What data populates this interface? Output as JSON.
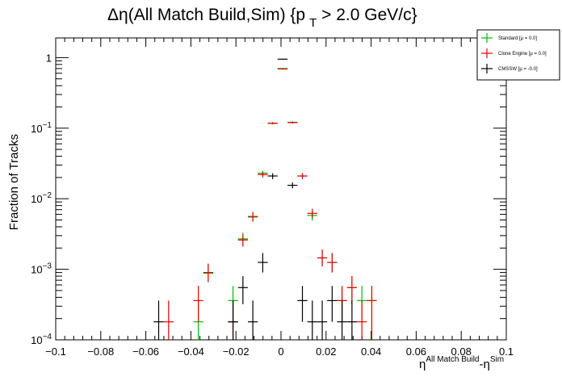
{
  "chart_data": {
    "type": "scatter",
    "title_main": "Δη(All Match Build,Sim) {p",
    "title_sub": "T",
    "title_tail": " > 2.0 GeV/c}",
    "xlabel_main": "η",
    "xlabel_sup1": "All Match Build",
    "xlabel_mid": "-η",
    "xlabel_sup2": "Sim",
    "ylabel": "Fraction of Tracks",
    "xlim": [
      -0.1,
      0.1
    ],
    "ylim": [
      0.0001,
      1.9
    ],
    "yscale": "log",
    "bin_width": 0.0044,
    "x_ticks": [
      "−0.1",
      "−0.08",
      "−0.06",
      "−0.04",
      "−0.02",
      "0",
      "0.02",
      "0.04",
      "0.06",
      "0.08",
      "0.1"
    ],
    "x_tick_values": [
      -0.1,
      -0.08,
      -0.06,
      -0.04,
      -0.02,
      0,
      0.02,
      0.04,
      0.06,
      0.08,
      0.1
    ],
    "y_ticks": [
      {
        "value": 1,
        "base": "1",
        "exp": ""
      },
      {
        "value": 0.1,
        "base": "10",
        "exp": "−1"
      },
      {
        "value": 0.01,
        "base": "10",
        "exp": "−2"
      },
      {
        "value": 0.001,
        "base": "10",
        "exp": "−3"
      },
      {
        "value": 0.0001,
        "base": "10",
        "exp": "−4"
      }
    ],
    "legend_position": "top-right",
    "series": [
      {
        "name": "Standard",
        "stat": "[μ = 0.0]",
        "color": "#00bb00",
        "points": [
          {
            "x": -0.0367,
            "y": 0.00018,
            "ylo": 0.0001,
            "yhi": 0.00036
          },
          {
            "x": -0.0323,
            "y": 0.00088,
            "ylo": 0.00065,
            "yhi": 0.0012
          },
          {
            "x": -0.0213,
            "y": 0.00036,
            "ylo": 0.00018,
            "yhi": 0.00058
          },
          {
            "x": -0.0169,
            "y": 0.0027,
            "ylo": 0.0022,
            "yhi": 0.0033
          },
          {
            "x": -0.0125,
            "y": 0.0055,
            "ylo": 0.0047,
            "yhi": 0.0064
          },
          {
            "x": -0.0081,
            "y": 0.023,
            "ylo": 0.021,
            "yhi": 0.025
          },
          {
            "x": -0.0037,
            "y": 0.118,
            "ylo": 0.114,
            "yhi": 0.122
          },
          {
            "x": 0.0007,
            "y": 0.7,
            "ylo": 0.69,
            "yhi": 0.71
          },
          {
            "x": 0.0051,
            "y": 0.121,
            "ylo": 0.117,
            "yhi": 0.125
          },
          {
            "x": 0.0095,
            "y": 0.021,
            "ylo": 0.019,
            "yhi": 0.023
          },
          {
            "x": 0.0139,
            "y": 0.0058,
            "ylo": 0.0049,
            "yhi": 0.0067
          },
          {
            "x": 0.0183,
            "y": 0.00145,
            "ylo": 0.0011,
            "yhi": 0.0019
          },
          {
            "x": 0.0227,
            "y": 0.00125,
            "ylo": 0.0009,
            "yhi": 0.0017
          },
          {
            "x": 0.0271,
            "y": 0.00036,
            "ylo": 0.00018,
            "yhi": 0.00058
          },
          {
            "x": 0.0315,
            "y": 0.00055,
            "ylo": 0.00032,
            "yhi": 0.0008
          },
          {
            "x": 0.0359,
            "y": 0.00036,
            "ylo": 0.00018,
            "yhi": 0.00058
          },
          {
            "x": 0.0403,
            "y": 0.00036,
            "ylo": 0.0001,
            "yhi": 0.00058
          }
        ]
      },
      {
        "name": "Clone Engine",
        "stat": "[μ = 0.0]",
        "color": "#ee0000",
        "points": [
          {
            "x": -0.0499,
            "y": 0.00018,
            "ylo": 0.0001,
            "yhi": 0.00036
          },
          {
            "x": -0.0367,
            "y": 0.00036,
            "ylo": 0.00018,
            "yhi": 0.00058
          },
          {
            "x": -0.0323,
            "y": 0.0009,
            "ylo": 0.00067,
            "yhi": 0.0012
          },
          {
            "x": -0.0213,
            "y": 0.00018,
            "ylo": 0.0001,
            "yhi": 0.00036
          },
          {
            "x": -0.0169,
            "y": 0.0026,
            "ylo": 0.0021,
            "yhi": 0.0031
          },
          {
            "x": -0.0125,
            "y": 0.0056,
            "ylo": 0.0048,
            "yhi": 0.0065
          },
          {
            "x": -0.0081,
            "y": 0.022,
            "ylo": 0.02,
            "yhi": 0.024
          },
          {
            "x": -0.0037,
            "y": 0.117,
            "ylo": 0.113,
            "yhi": 0.121
          },
          {
            "x": 0.0007,
            "y": 0.69,
            "ylo": 0.68,
            "yhi": 0.7
          },
          {
            "x": 0.0051,
            "y": 0.12,
            "ylo": 0.116,
            "yhi": 0.124
          },
          {
            "x": 0.0095,
            "y": 0.021,
            "ylo": 0.019,
            "yhi": 0.023
          },
          {
            "x": 0.0139,
            "y": 0.0062,
            "ylo": 0.0053,
            "yhi": 0.0072
          },
          {
            "x": 0.0183,
            "y": 0.00145,
            "ylo": 0.0011,
            "yhi": 0.0019
          },
          {
            "x": 0.0227,
            "y": 0.00125,
            "ylo": 0.0009,
            "yhi": 0.0017
          },
          {
            "x": 0.0271,
            "y": 0.00036,
            "ylo": 0.00018,
            "yhi": 0.00058
          },
          {
            "x": 0.0315,
            "y": 0.00055,
            "ylo": 0.00032,
            "yhi": 0.0008
          },
          {
            "x": 0.0359,
            "y": 0.00018,
            "ylo": 0.0001,
            "yhi": 0.00036
          },
          {
            "x": 0.0403,
            "y": 0.00036,
            "ylo": 0.0001,
            "yhi": 0.00058
          }
        ]
      },
      {
        "name": "CMSSW",
        "stat": "[μ = -0.0]",
        "color": "#000000",
        "points": [
          {
            "x": -0.0543,
            "y": 0.00018,
            "ylo": 0.0001,
            "yhi": 0.00036
          },
          {
            "x": -0.0213,
            "y": 0.00018,
            "ylo": 0.0001,
            "yhi": 0.00036
          },
          {
            "x": -0.0169,
            "y": 0.00055,
            "ylo": 0.00032,
            "yhi": 0.0008
          },
          {
            "x": -0.0125,
            "y": 0.00018,
            "ylo": 0.0001,
            "yhi": 0.00036
          },
          {
            "x": -0.0081,
            "y": 0.00125,
            "ylo": 0.0009,
            "yhi": 0.0017
          },
          {
            "x": -0.0037,
            "y": 0.021,
            "ylo": 0.019,
            "yhi": 0.023
          },
          {
            "x": 0.0007,
            "y": 0.95,
            "ylo": 0.94,
            "yhi": 0.96
          },
          {
            "x": 0.0051,
            "y": 0.0155,
            "ylo": 0.014,
            "yhi": 0.017
          },
          {
            "x": 0.0095,
            "y": 0.00036,
            "ylo": 0.00018,
            "yhi": 0.00058
          },
          {
            "x": 0.0139,
            "y": 0.00018,
            "ylo": 0.0001,
            "yhi": 0.00036
          },
          {
            "x": 0.0183,
            "y": 0.00018,
            "ylo": 0.0001,
            "yhi": 0.00036
          },
          {
            "x": 0.0227,
            "y": 0.00036,
            "ylo": 0.00018,
            "yhi": 0.00058
          },
          {
            "x": 0.0271,
            "y": 0.00018,
            "ylo": 0.0001,
            "yhi": 0.00036
          },
          {
            "x": 0.0315,
            "y": 0.00018,
            "ylo": 0.0001,
            "yhi": 0.00036
          }
        ]
      }
    ]
  }
}
